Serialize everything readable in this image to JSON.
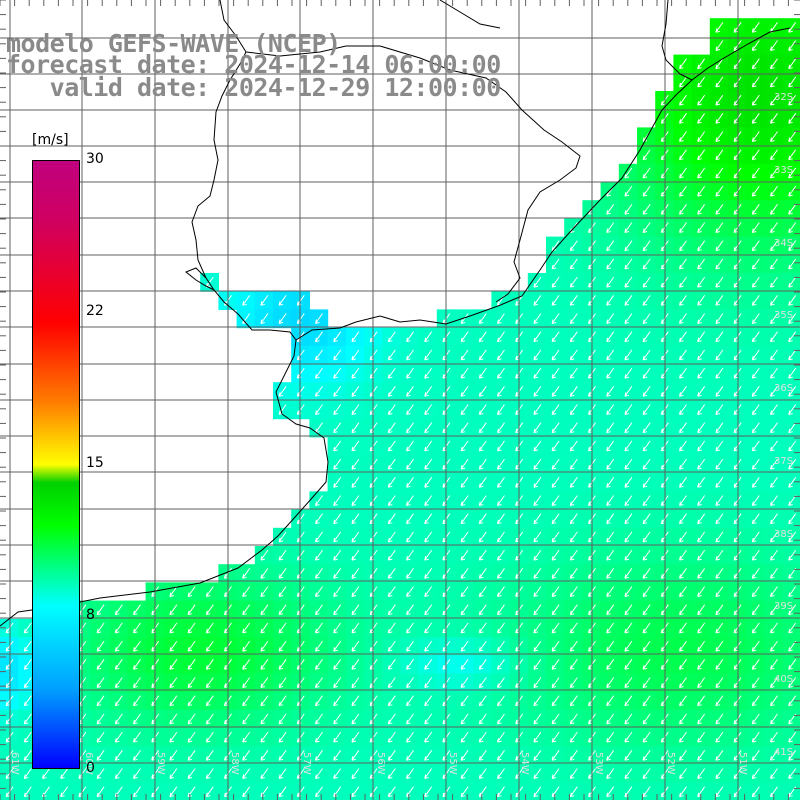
{
  "title": {
    "line1": "modelo GEFS-WAVE (NCEP)",
    "line2": "forecast date: 2024-12-14 06:00:00",
    "line3": "   valid date: 2024-12-29 12:00:00"
  },
  "colorbar": {
    "unit": "[m/s]",
    "ticks": [
      "30",
      "22",
      "15",
      "8",
      "0"
    ],
    "tick_values": [
      30,
      22,
      15,
      8,
      0
    ],
    "range": [
      0,
      30
    ]
  },
  "map": {
    "variable": "wind speed with direction arrows",
    "lat_labels": [
      "32S",
      "33S",
      "34S",
      "35S",
      "36S",
      "37S",
      "38S",
      "39S",
      "40S",
      "41S"
    ],
    "lon_labels": [
      "61W",
      "60W",
      "59W",
      "58W",
      "57W",
      "56W",
      "55W",
      "54W",
      "53W",
      "52W",
      "51W"
    ],
    "arrow_direction": "southwest",
    "colors": {
      "land": "#ffffff",
      "coast": "#000000",
      "grid": "#606060"
    }
  }
}
